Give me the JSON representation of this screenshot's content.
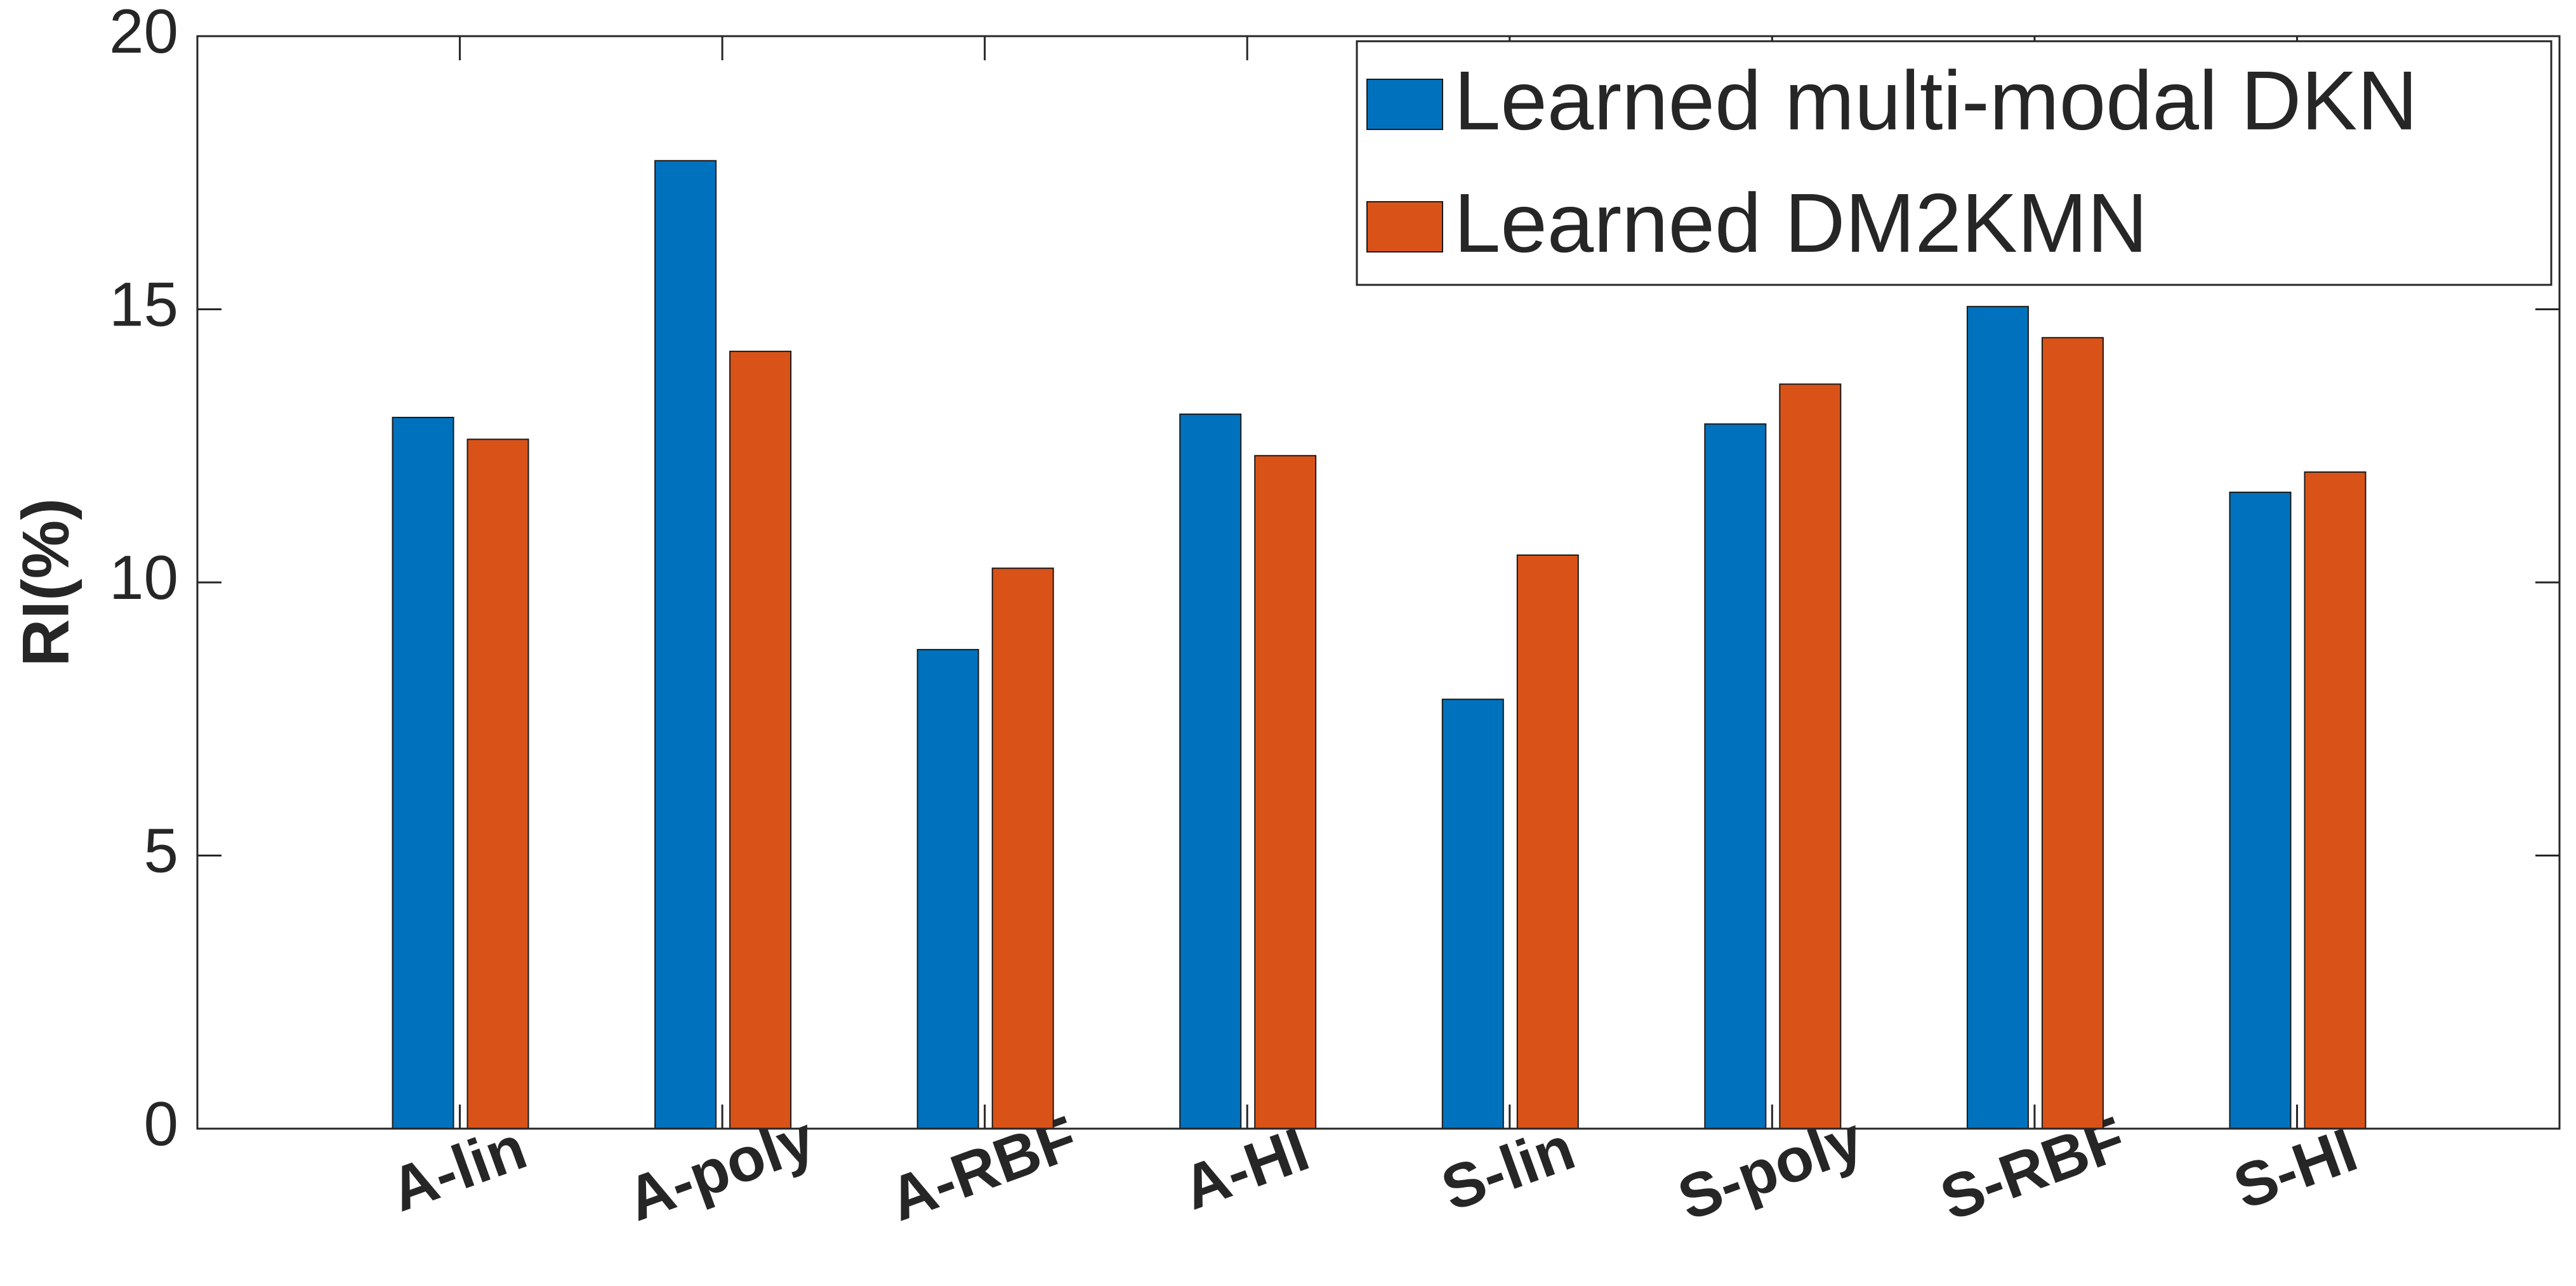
{
  "chart_data": {
    "type": "bar",
    "ylabel": "RI(%)",
    "categories": [
      "A-lin",
      "A-poly",
      "A-RBF",
      "A-HI",
      "S-lin",
      "S-poly",
      "S-RBF",
      "S-HI"
    ],
    "series": [
      {
        "name": "Learned multi-modal DKN",
        "color": "#0072bd",
        "values": [
          13.02,
          17.72,
          8.77,
          13.08,
          7.86,
          12.9,
          15.05,
          11.65
        ]
      },
      {
        "name": "Learned DM2KMN",
        "color": "#d95319",
        "values": [
          12.62,
          14.23,
          10.26,
          12.32,
          10.5,
          13.63,
          14.48,
          12.02
        ]
      }
    ],
    "ylim": [
      0,
      20
    ],
    "yticks": [
      0,
      5,
      10,
      15,
      20
    ],
    "grid": false,
    "legend": "top-right"
  }
}
